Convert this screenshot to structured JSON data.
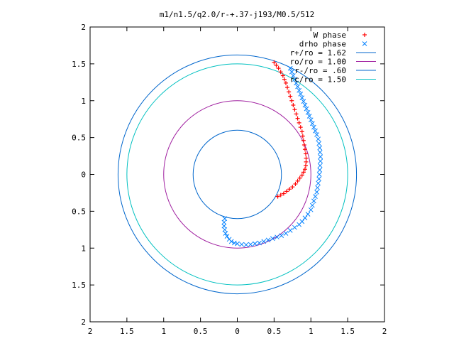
{
  "chart_data": {
    "type": "scatter",
    "title": "m1/n1.5/q2.0/r-+.37-j193/M0.5/512",
    "xlim": [
      -2,
      2
    ],
    "ylim": [
      -2,
      2
    ],
    "x_ticks": [
      {
        "value": -2,
        "label": "2"
      },
      {
        "value": -1.5,
        "label": "1.5"
      },
      {
        "value": -1,
        "label": "1"
      },
      {
        "value": -0.5,
        "label": "0.5"
      },
      {
        "value": 0,
        "label": "0"
      },
      {
        "value": 0.5,
        "label": "0.5"
      },
      {
        "value": 1,
        "label": "1"
      },
      {
        "value": 1.5,
        "label": "1.5"
      },
      {
        "value": 2,
        "label": "2"
      }
    ],
    "y_ticks": [
      {
        "value": 2,
        "label": "2"
      },
      {
        "value": 1.5,
        "label": "1.5"
      },
      {
        "value": 1,
        "label": "1"
      },
      {
        "value": 0.5,
        "label": "0.5"
      },
      {
        "value": 0,
        "label": "0"
      },
      {
        "value": -0.5,
        "label": "0.5"
      },
      {
        "value": -1,
        "label": "1"
      },
      {
        "value": -1.5,
        "label": "1.5"
      },
      {
        "value": -2,
        "label": "2"
      }
    ],
    "grid": false,
    "legend_position": "top-right",
    "series": [
      {
        "name": "W phase",
        "kind": "points",
        "marker": "+",
        "color": "#ff0000",
        "points": [
          [
            0.55,
            -0.3
          ],
          [
            0.59,
            -0.28
          ],
          [
            0.63,
            -0.26
          ],
          [
            0.67,
            -0.23
          ],
          [
            0.71,
            -0.2
          ],
          [
            0.75,
            -0.17
          ],
          [
            0.79,
            -0.13
          ],
          [
            0.82,
            -0.09
          ],
          [
            0.85,
            -0.05
          ],
          [
            0.88,
            -0.01
          ],
          [
            0.9,
            0.03
          ],
          [
            0.92,
            0.07
          ],
          [
            0.93,
            0.12
          ],
          [
            0.935,
            0.17
          ],
          [
            0.935,
            0.22
          ],
          [
            0.93,
            0.28
          ],
          [
            0.92,
            0.34
          ],
          [
            0.91,
            0.4
          ],
          [
            0.9,
            0.46
          ],
          [
            0.89,
            0.52
          ],
          [
            0.88,
            0.58
          ],
          [
            0.86,
            0.64
          ],
          [
            0.84,
            0.7
          ],
          [
            0.82,
            0.76
          ],
          [
            0.8,
            0.82
          ],
          [
            0.78,
            0.88
          ],
          [
            0.76,
            0.94
          ],
          [
            0.74,
            1.0
          ],
          [
            0.72,
            1.06
          ],
          [
            0.7,
            1.12
          ],
          [
            0.68,
            1.18
          ],
          [
            0.66,
            1.24
          ],
          [
            0.64,
            1.29
          ],
          [
            0.62,
            1.34
          ],
          [
            0.59,
            1.39
          ],
          [
            0.56,
            1.44
          ],
          [
            0.53,
            1.48
          ],
          [
            0.5,
            1.52
          ]
        ]
      },
      {
        "name": "drho phase",
        "kind": "points",
        "marker": "x",
        "color": "#0080ff",
        "points": [
          [
            0.72,
            1.44
          ],
          [
            0.74,
            1.39
          ],
          [
            0.76,
            1.34
          ],
          [
            0.78,
            1.29
          ],
          [
            0.8,
            1.24
          ],
          [
            0.82,
            1.19
          ],
          [
            0.84,
            1.14
          ],
          [
            0.86,
            1.09
          ],
          [
            0.88,
            1.04
          ],
          [
            0.9,
            0.99
          ],
          [
            0.92,
            0.94
          ],
          [
            0.94,
            0.89
          ],
          [
            0.96,
            0.84
          ],
          [
            0.98,
            0.79
          ],
          [
            1.0,
            0.74
          ],
          [
            1.02,
            0.69
          ],
          [
            1.04,
            0.64
          ],
          [
            1.06,
            0.59
          ],
          [
            1.08,
            0.54
          ],
          [
            1.1,
            0.48
          ],
          [
            1.11,
            0.42
          ],
          [
            1.12,
            0.36
          ],
          [
            1.125,
            0.3
          ],
          [
            1.13,
            0.24
          ],
          [
            1.13,
            0.18
          ],
          [
            1.125,
            0.12
          ],
          [
            1.12,
            0.06
          ],
          [
            1.115,
            0.0
          ],
          [
            1.11,
            -0.06
          ],
          [
            1.1,
            -0.12
          ],
          [
            1.09,
            -0.18
          ],
          [
            1.08,
            -0.24
          ],
          [
            1.06,
            -0.3
          ],
          [
            1.04,
            -0.36
          ],
          [
            1.02,
            -0.42
          ],
          [
            1.0,
            -0.48
          ],
          [
            0.96,
            -0.54
          ],
          [
            0.92,
            -0.59
          ],
          [
            0.88,
            -0.64
          ],
          [
            0.84,
            -0.68
          ],
          [
            0.78,
            -0.72
          ],
          [
            0.72,
            -0.76
          ],
          [
            0.66,
            -0.8
          ],
          [
            0.6,
            -0.83
          ],
          [
            0.54,
            -0.85
          ],
          [
            0.48,
            -0.87
          ],
          [
            0.42,
            -0.89
          ],
          [
            0.36,
            -0.91
          ],
          [
            0.3,
            -0.93
          ],
          [
            0.24,
            -0.94
          ],
          [
            0.18,
            -0.95
          ],
          [
            0.12,
            -0.955
          ],
          [
            0.06,
            -0.95
          ],
          [
            0.0,
            -0.94
          ],
          [
            -0.04,
            -0.93
          ],
          [
            -0.08,
            -0.91
          ],
          [
            -0.11,
            -0.88
          ],
          [
            -0.14,
            -0.84
          ],
          [
            -0.16,
            -0.8
          ],
          [
            -0.17,
            -0.75
          ],
          [
            -0.18,
            -0.7
          ],
          [
            -0.18,
            -0.65
          ],
          [
            -0.17,
            -0.6
          ]
        ]
      },
      {
        "name": "r+/ro = 1.62",
        "kind": "circle",
        "radius": 1.62,
        "color": "#0066cc"
      },
      {
        "name": "ro/ro = 1.00",
        "kind": "circle",
        "radius": 1.0,
        "color": "#a020a0"
      },
      {
        "name": "r-/ro = .60",
        "kind": "circle",
        "radius": 0.6,
        "color": "#0066cc"
      },
      {
        "name": "rc/ro = 1.50",
        "kind": "circle",
        "radius": 1.5,
        "color": "#00c0c0"
      }
    ]
  }
}
